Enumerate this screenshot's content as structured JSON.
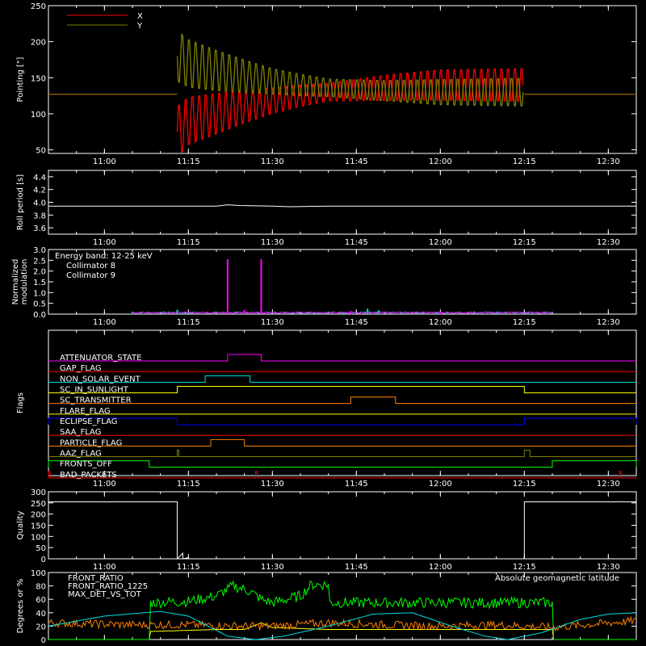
{
  "time_axis": {
    "start": "10:50",
    "end": "12:35",
    "tick_labels": [
      "11:00",
      "11:15",
      "11:30",
      "11:45",
      "12:00",
      "12:15",
      "12:30"
    ]
  },
  "colors": {
    "X": "#ff0000",
    "Y": "#808000",
    "roll": "#ffffff",
    "c8": "#00e0e0",
    "c9": "#ff00ff",
    "quality": "#ffffff",
    "front_ratio": "#ffff00",
    "front_ratio_1225": "#00ff00",
    "max_det": "#ff8000",
    "geomag": "#00e0e0"
  },
  "chart_data": [
    {
      "type": "line",
      "id": "pointing",
      "ylabel": "Pointing [\"]",
      "ylim": [
        45,
        250
      ],
      "yticks": [
        50,
        100,
        150,
        200,
        250
      ],
      "series": [
        {
          "name": "X",
          "key": "X",
          "points": [
            [
              "10:50",
              127
            ],
            [
              "11:13",
              127
            ],
            [
              "11:13",
              75
            ],
            [
              "11:15",
              90
            ],
            [
              "11:20",
              100
            ],
            [
              "11:25",
              110
            ],
            [
              "11:30",
              118
            ],
            [
              "11:35",
              125
            ],
            [
              "11:40",
              130
            ],
            [
              "11:45",
              133
            ],
            [
              "11:50",
              136
            ],
            [
              "11:55",
              138
            ],
            [
              "12:00",
              140
            ],
            [
              "12:05",
              140
            ],
            [
              "12:10",
              140
            ],
            [
              "12:15",
              140
            ],
            [
              "12:15",
              127
            ],
            [
              "12:35",
              127
            ]
          ],
          "amp": [
            [
              "11:13",
              40
            ],
            [
              "11:20",
              32
            ],
            [
              "11:25",
              26
            ],
            [
              "11:30",
              20
            ],
            [
              "11:40",
              14
            ],
            [
              "11:50",
              20
            ],
            [
              "12:00",
              24
            ],
            [
              "12:15",
              26
            ]
          ]
        },
        {
          "name": "Y",
          "key": "Y",
          "points": [
            [
              "10:50",
              127
            ],
            [
              "11:13",
              127
            ],
            [
              "11:13",
              180
            ],
            [
              "11:15",
              170
            ],
            [
              "11:20",
              160
            ],
            [
              "11:25",
              152
            ],
            [
              "11:30",
              145
            ],
            [
              "11:35",
              140
            ],
            [
              "11:40",
              136
            ],
            [
              "11:45",
              134
            ],
            [
              "11:50",
              132
            ],
            [
              "11:55",
              131
            ],
            [
              "12:00",
              130
            ],
            [
              "12:05",
              130
            ],
            [
              "12:10",
              130
            ],
            [
              "12:15",
              130
            ],
            [
              "12:15",
              127
            ],
            [
              "12:35",
              127
            ]
          ],
          "amp": [
            [
              "11:13",
              40
            ],
            [
              "11:20",
              32
            ],
            [
              "11:25",
              26
            ],
            [
              "11:30",
              20
            ],
            [
              "11:40",
              14
            ],
            [
              "11:50",
              16
            ],
            [
              "12:00",
              20
            ],
            [
              "12:15",
              22
            ]
          ]
        }
      ]
    },
    {
      "type": "line",
      "id": "roll",
      "ylabel": "Roll period [s]",
      "ylim": [
        3.5,
        4.5
      ],
      "yticks": [
        3.6,
        3.8,
        4.0,
        4.2,
        4.4
      ],
      "series": [
        {
          "name": "",
          "key": "roll",
          "points": [
            [
              "10:50",
              3.94
            ],
            [
              "11:20",
              3.94
            ],
            [
              "11:22",
              3.96
            ],
            [
              "11:24",
              3.95
            ],
            [
              "11:30",
              3.94
            ],
            [
              "11:33",
              3.93
            ],
            [
              "11:40",
              3.94
            ],
            [
              "12:00",
              3.94
            ],
            [
              "12:35",
              3.94
            ]
          ]
        }
      ]
    },
    {
      "type": "line",
      "id": "modulation",
      "ylabel": [
        "Normalized",
        "modulation"
      ],
      "ylim": [
        0,
        3.0
      ],
      "yticks": [
        0.0,
        0.5,
        1.0,
        1.5,
        2.0,
        2.5,
        3.0
      ],
      "annotation": "Energy band: 12-25 keV",
      "series": [
        {
          "name": "Collimator 8",
          "key": "c8",
          "spikes": [
            [
              "11:05",
              0.03
            ],
            [
              "11:13",
              0.2
            ],
            [
              "11:47",
              0.25
            ],
            [
              "11:49",
              0.18
            ],
            [
              "12:06",
              0.12
            ],
            [
              "12:10",
              0.1
            ]
          ]
        },
        {
          "name": "Collimator 9",
          "key": "c9",
          "spikes": [
            [
              "11:22",
              2.55
            ],
            [
              "11:25",
              0.2
            ],
            [
              "11:28",
              2.55
            ],
            [
              "11:44",
              0.15
            ],
            [
              "12:00",
              0.1
            ]
          ]
        }
      ],
      "active_range": [
        "11:05",
        "12:20"
      ]
    },
    {
      "type": "table",
      "id": "flags",
      "ylabel": "Flags",
      "flags": [
        {
          "label": "ATTENUATOR_STATE",
          "color": "#ff00ff",
          "high": [
            [
              "11:22",
              "11:28"
            ]
          ]
        },
        {
          "label": "GAP_FLAG",
          "color": "#ff0000",
          "high": []
        },
        {
          "label": "NON_SOLAR_EVENT",
          "color": "#00e0e0",
          "high": [
            [
              "11:18",
              "11:26"
            ]
          ]
        },
        {
          "label": "SC_IN_SUNLIGHT",
          "color": "#ffff00",
          "high": [
            [
              "11:13",
              "12:15"
            ]
          ]
        },
        {
          "label": "SC_TRANSMITTER",
          "color": "#ff8000",
          "high": [
            [
              "11:44",
              "11:52"
            ]
          ]
        },
        {
          "label": "FLARE_FLAG",
          "color": "#ffff00",
          "high": []
        },
        {
          "label": "ECLIPSE_FLAG",
          "color": "#0000ff",
          "high": [
            [
              "10:50",
              "11:13"
            ],
            [
              "12:15",
              "12:35"
            ]
          ]
        },
        {
          "label": "SAA_FLAG",
          "color": "#ff0000",
          "high": []
        },
        {
          "label": "PARTICLE_FLAG",
          "color": "#ff8000",
          "high": [
            [
              "11:19",
              "11:25"
            ]
          ]
        },
        {
          "label": "AAZ_FLAG",
          "color": "#808000",
          "high": [
            [
              "11:13",
              "11:13"
            ],
            [
              "12:15",
              "12:16"
            ]
          ]
        },
        {
          "label": "FRONTS_OFF",
          "color": "#00ff00",
          "high": [
            [
              "10:50",
              "11:08"
            ],
            [
              "12:20",
              "12:35"
            ]
          ]
        },
        {
          "label": "BAD_PACKETS",
          "color": "#ff0000",
          "high": [
            [
              "10:50",
              "10:50"
            ],
            [
              "11:27",
              "11:27"
            ],
            [
              "12:32",
              "12:32"
            ]
          ]
        }
      ]
    },
    {
      "type": "line",
      "id": "quality",
      "ylabel": "Quality",
      "ylim": [
        0,
        300
      ],
      "yticks": [
        0,
        50,
        100,
        150,
        200,
        250,
        300
      ],
      "series": [
        {
          "name": "",
          "key": "quality",
          "points": [
            [
              "10:50",
              255
            ],
            [
              "11:13",
              255
            ],
            [
              "11:13",
              0
            ],
            [
              "11:14",
              25
            ],
            [
              "11:14",
              0
            ],
            [
              "11:15",
              5
            ],
            [
              "11:15",
              0
            ],
            [
              "12:15",
              0
            ],
            [
              "12:15",
              255
            ],
            [
              "12:35",
              255
            ]
          ]
        }
      ]
    },
    {
      "type": "line",
      "id": "ratios",
      "ylabel": "Degrees or %",
      "ylim": [
        0,
        100
      ],
      "yticks": [
        0,
        20,
        40,
        60,
        80,
        100
      ],
      "series": [
        {
          "name": "FRONT_RATIO",
          "key": "front_ratio",
          "points": [
            [
              "10:50",
              0
            ],
            [
              "11:08",
              0
            ],
            [
              "11:08",
              12
            ],
            [
              "11:20",
              15
            ],
            [
              "11:25",
              15
            ],
            [
              "11:28",
              25
            ],
            [
              "11:30",
              18
            ],
            [
              "11:40",
              15
            ],
            [
              "12:00",
              15
            ],
            [
              "12:20",
              15
            ],
            [
              "12:20",
              0
            ],
            [
              "12:35",
              0
            ]
          ]
        },
        {
          "name": "FRONT_RATIO_1225",
          "key": "front_ratio_1225",
          "points": [
            [
              "10:50",
              0
            ],
            [
              "11:08",
              0
            ],
            [
              "11:08",
              55
            ],
            [
              "11:15",
              57
            ],
            [
              "11:20",
              65
            ],
            [
              "11:23",
              80
            ],
            [
              "11:26",
              72
            ],
            [
              "11:28",
              60
            ],
            [
              "11:30",
              55
            ],
            [
              "11:35",
              65
            ],
            [
              "11:37",
              82
            ],
            [
              "11:40",
              82
            ],
            [
              "11:40",
              55
            ],
            [
              "12:00",
              55
            ],
            [
              "12:20",
              55
            ],
            [
              "12:20",
              0
            ],
            [
              "12:35",
              0
            ]
          ],
          "noise": 8
        },
        {
          "name": "MAX_DET_VS_TOT",
          "key": "max_det",
          "points": [
            [
              "10:50",
              25
            ],
            [
              "11:05",
              22
            ],
            [
              "11:15",
              22
            ],
            [
              "11:25",
              20
            ],
            [
              "11:30",
              20
            ],
            [
              "11:40",
              25
            ],
            [
              "11:50",
              22
            ],
            [
              "12:00",
              20
            ],
            [
              "12:10",
              22
            ],
            [
              "12:20",
              18
            ],
            [
              "12:35",
              28
            ]
          ],
          "noise": 6
        },
        {
          "name": "Absolute geomagnetic latitude",
          "key": "geomag",
          "points": [
            [
              "10:50",
              20
            ],
            [
              "11:00",
              35
            ],
            [
              "11:10",
              42
            ],
            [
              "11:15",
              35
            ],
            [
              "11:22",
              5
            ],
            [
              "11:27",
              0
            ],
            [
              "11:32",
              5
            ],
            [
              "11:40",
              20
            ],
            [
              "11:48",
              38
            ],
            [
              "11:55",
              40
            ],
            [
              "12:02",
              20
            ],
            [
              "12:08",
              5
            ],
            [
              "12:12",
              0
            ],
            [
              "12:18",
              10
            ],
            [
              "12:25",
              30
            ],
            [
              "12:30",
              38
            ],
            [
              "12:35",
              40
            ]
          ]
        }
      ]
    }
  ]
}
